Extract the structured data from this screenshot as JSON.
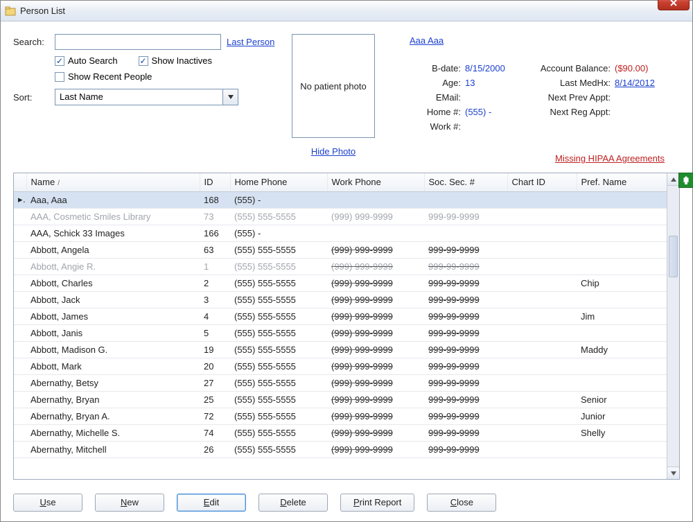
{
  "window": {
    "title": "Person List"
  },
  "search": {
    "label": "Search:",
    "value": "",
    "last_person_link": "Last Person",
    "auto_search": {
      "label": "Auto Search",
      "checked": true
    },
    "show_inactives": {
      "label": "Show Inactives",
      "checked": true
    },
    "show_recent": {
      "label": "Show Recent People",
      "checked": false
    }
  },
  "sort": {
    "label": "Sort:",
    "value": "Last Name"
  },
  "photo": {
    "placeholder": "No patient photo",
    "hide_link": "Hide Photo"
  },
  "patient": {
    "name_link": "Aaa Aaa",
    "bdate_lbl": "B-date:",
    "bdate": "8/15/2000",
    "age_lbl": "Age:",
    "age": "13",
    "email_lbl": "EMail:",
    "email": "",
    "home_lbl": "Home #:",
    "home": "(555)   -",
    "work_lbl": "Work #:",
    "work": "",
    "balance_lbl": "Account Balance:",
    "balance": "($90.00)",
    "medhx_lbl": "Last MedHx:",
    "medhx": "8/14/2012",
    "nextprev_lbl": "Next Prev Appt:",
    "nextprev": "",
    "nextreg_lbl": "Next Reg Appt:",
    "nextreg": ""
  },
  "hipaa_link": "Missing HIPAA Agreements",
  "columns": {
    "name": "Name",
    "id": "ID",
    "home_phone": "Home Phone",
    "work_phone": "Work Phone",
    "ssn": "Soc. Sec. #",
    "chart_id": "Chart ID",
    "pref_name": "Pref. Name"
  },
  "rows": [
    {
      "name": "Aaa, Aaa",
      "id": "168",
      "home": "(555)    -",
      "work": "",
      "ssn": "",
      "chart": "",
      "pref": "",
      "selected": true,
      "inactive": false,
      "strike": false
    },
    {
      "name": "AAA, Cosmetic Smiles Library",
      "id": "73",
      "home": "(555) 555-5555",
      "work": "(999) 999-9999",
      "ssn": "999-99-9999",
      "chart": "",
      "pref": "",
      "inactive": true,
      "strike": false
    },
    {
      "name": "AAA, Schick 33 Images",
      "id": "166",
      "home": "(555)    -",
      "work": "",
      "ssn": "",
      "chart": "",
      "pref": "",
      "inactive": false,
      "strike": false
    },
    {
      "name": "Abbott, Angela",
      "id": "63",
      "home": "(555) 555-5555",
      "work": "(999) 999-9999",
      "ssn": "999-99-9999",
      "chart": "",
      "pref": "",
      "inactive": false,
      "strike": true
    },
    {
      "name": "Abbott, Angie R.",
      "id": "1",
      "home": "(555) 555-5555",
      "work": "(999) 999-9999",
      "ssn": "999-99-9999",
      "chart": "",
      "pref": "",
      "inactive": true,
      "strike": true
    },
    {
      "name": "Abbott, Charles",
      "id": "2",
      "home": "(555) 555-5555",
      "work": "(999) 999-9999",
      "ssn": "999-99-9999",
      "chart": "",
      "pref": "Chip",
      "inactive": false,
      "strike": true
    },
    {
      "name": "Abbott, Jack",
      "id": "3",
      "home": "(555) 555-5555",
      "work": "(999) 999-9999",
      "ssn": "999-99-9999",
      "chart": "",
      "pref": "",
      "inactive": false,
      "strike": true
    },
    {
      "name": "Abbott, James",
      "id": "4",
      "home": "(555) 555-5555",
      "work": "(999) 999-9999",
      "ssn": "999-99-9999",
      "chart": "",
      "pref": "Jim",
      "inactive": false,
      "strike": true
    },
    {
      "name": "Abbott, Janis",
      "id": "5",
      "home": "(555) 555-5555",
      "work": "(999) 999-9999",
      "ssn": "999-99-9999",
      "chart": "",
      "pref": "",
      "inactive": false,
      "strike": true
    },
    {
      "name": "Abbott, Madison G.",
      "id": "19",
      "home": "(555) 555-5555",
      "work": "(999) 999-9999",
      "ssn": "999-99-9999",
      "chart": "",
      "pref": "Maddy",
      "inactive": false,
      "strike": true
    },
    {
      "name": "Abbott, Mark",
      "id": "20",
      "home": "(555) 555-5555",
      "work": "(999) 999-9999",
      "ssn": "999-99-9999",
      "chart": "",
      "pref": "",
      "inactive": false,
      "strike": true
    },
    {
      "name": "Abernathy, Betsy",
      "id": "27",
      "home": "(555) 555-5555",
      "work": "(999) 999-9999",
      "ssn": "999-99-9999",
      "chart": "",
      "pref": "",
      "inactive": false,
      "strike": true
    },
    {
      "name": "Abernathy, Bryan",
      "id": "25",
      "home": "(555) 555-5555",
      "work": "(999) 999-9999",
      "ssn": "999-99-9999",
      "chart": "",
      "pref": "Senior",
      "inactive": false,
      "strike": true
    },
    {
      "name": "Abernathy, Bryan A.",
      "id": "72",
      "home": "(555) 555-5555",
      "work": "(999) 999-9999",
      "ssn": "999-99-9999",
      "chart": "",
      "pref": "Junior",
      "inactive": false,
      "strike": true
    },
    {
      "name": "Abernathy, Michelle S.",
      "id": "74",
      "home": "(555) 555-5555",
      "work": "(999) 999-9999",
      "ssn": "999-99-9999",
      "chart": "",
      "pref": "Shelly",
      "inactive": false,
      "strike": true
    },
    {
      "name": "Abernathy, Mitchell",
      "id": "26",
      "home": "(555) 555-5555",
      "work": "(999) 999-9999",
      "ssn": "999-99-9999",
      "chart": "",
      "pref": "",
      "inactive": false,
      "strike": true
    }
  ],
  "buttons": {
    "use": "Use",
    "new": "New",
    "edit": "Edit",
    "delete": "Delete",
    "print": "Print Report",
    "close": "Close"
  },
  "colors": {
    "link": "#1a3fcf",
    "link_red": "#c02020",
    "selected_row": "#d6e2f2",
    "inactive_text": "#a0a4ac"
  }
}
